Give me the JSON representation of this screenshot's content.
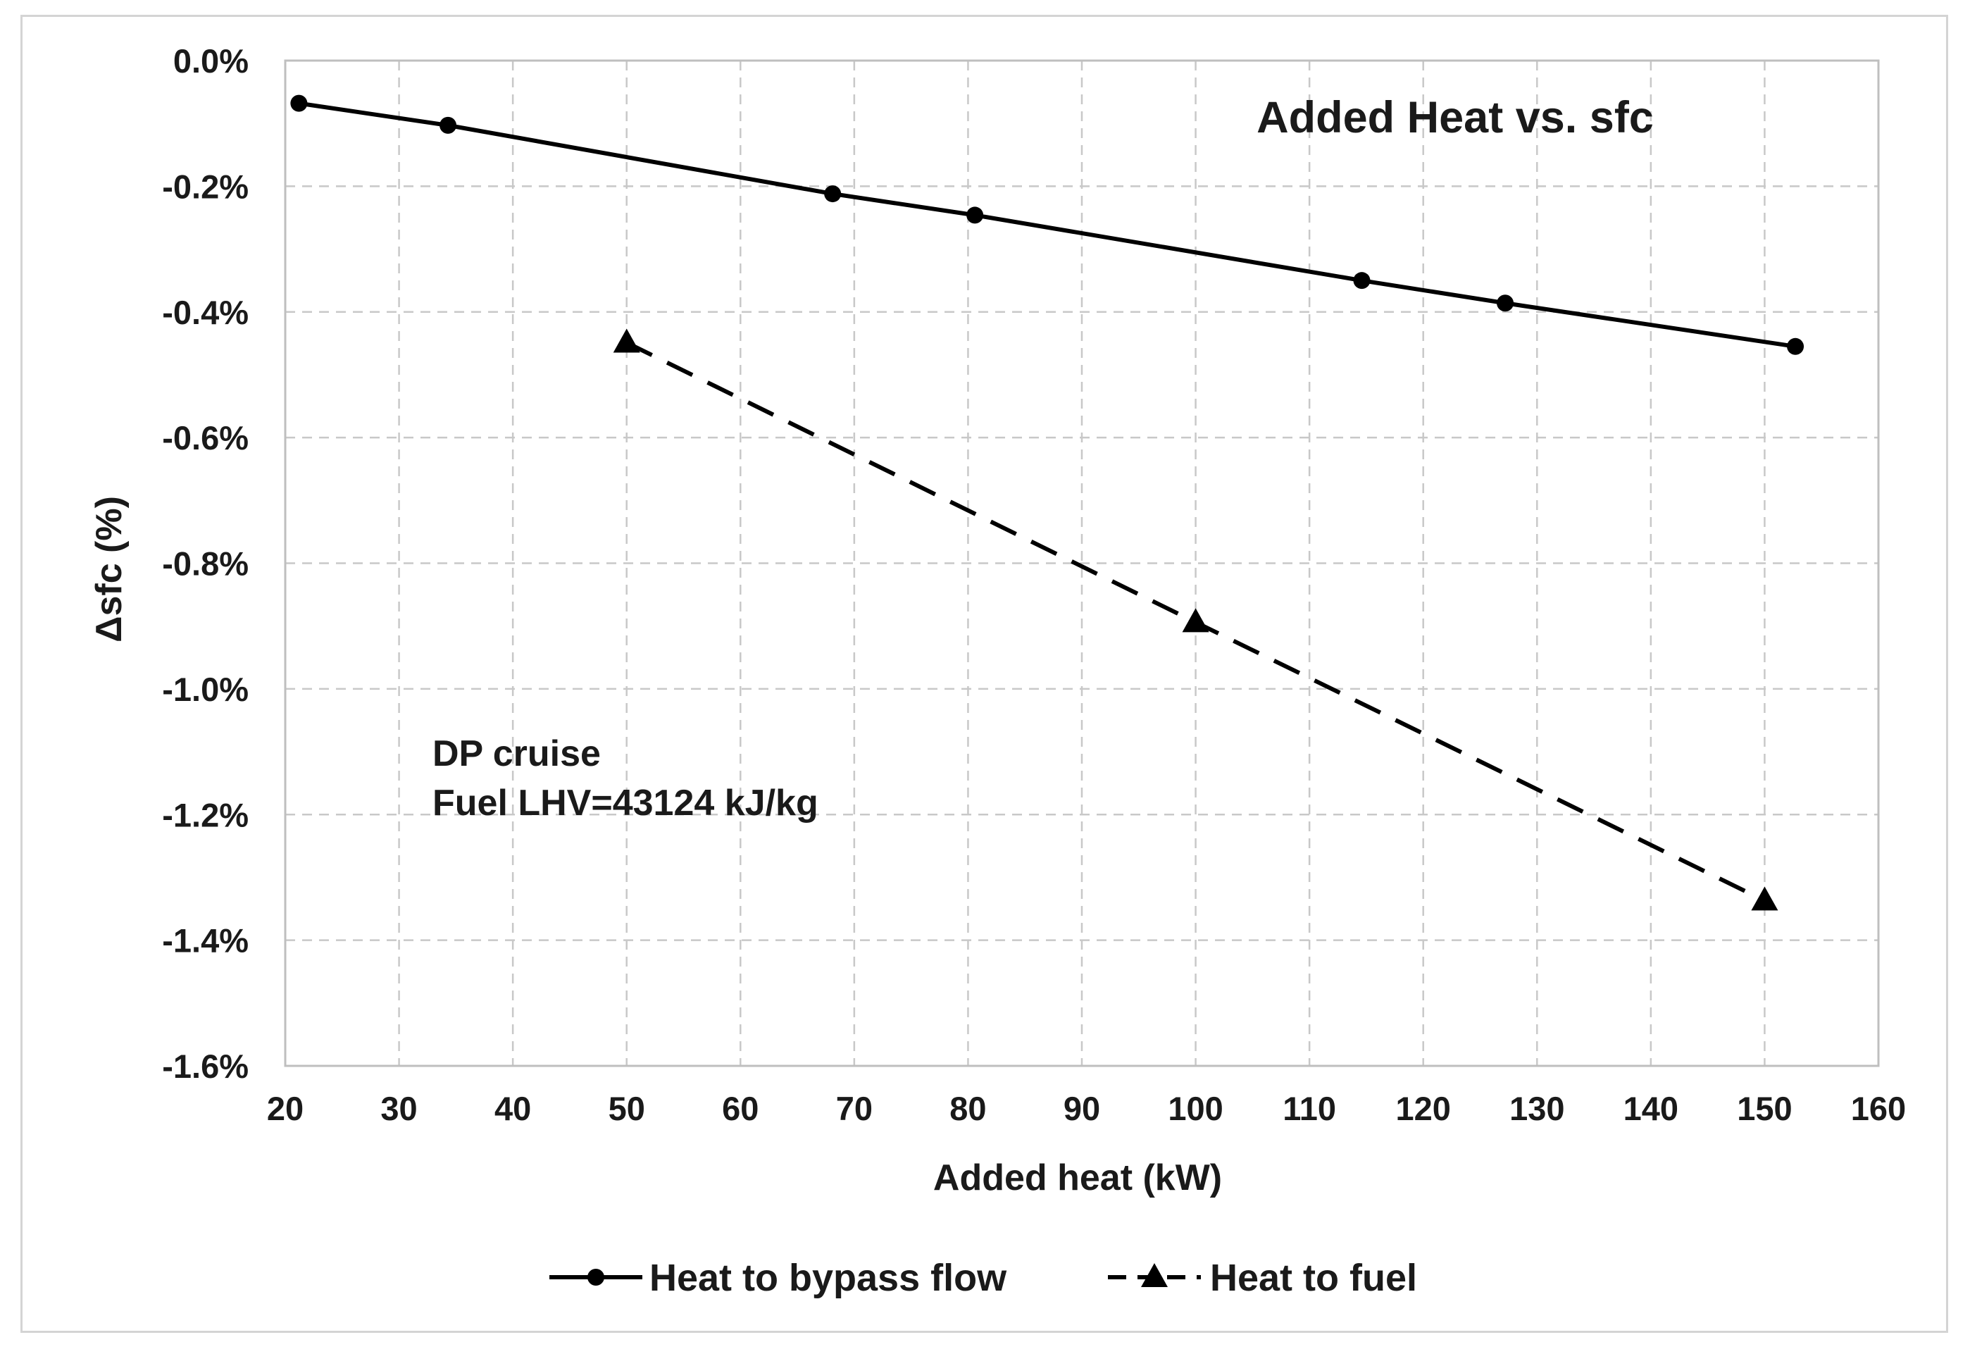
{
  "chart_data": {
    "type": "line",
    "title": "Added Heat  vs. sfc",
    "xlabel": "Added heat (kW)",
    "ylabel": "Δsfc (%)",
    "xlim": [
      20,
      160
    ],
    "ylim": [
      -1.6,
      0.0
    ],
    "x_ticks": [
      20,
      30,
      40,
      50,
      60,
      70,
      80,
      90,
      100,
      110,
      120,
      130,
      140,
      150,
      160
    ],
    "x_tick_labels": [
      "20",
      "30",
      "40",
      "50",
      "60",
      "70",
      "80",
      "90",
      "100",
      "110",
      "120",
      "130",
      "140",
      "150",
      "160"
    ],
    "y_ticks": [
      0.0,
      -0.2,
      -0.4,
      -0.6,
      -0.8,
      -1.0,
      -1.2,
      -1.4,
      -1.6
    ],
    "y_tick_labels": [
      "0.0%",
      "-0.2%",
      "-0.4%",
      "-0.6%",
      "-0.8%",
      "-1.0%",
      "-1.2%",
      "-1.4%",
      "-1.6%"
    ],
    "grid": true,
    "legend_position": "bottom",
    "annotations": [
      "DP cruise",
      "Fuel LHV=43124 kJ/kg"
    ],
    "series": [
      {
        "name": "Heat to bypass flow",
        "line_style": "solid",
        "marker": "circle",
        "color": "#000000",
        "x": [
          21.2,
          34.3,
          68.1,
          80.6,
          114.6,
          127.2,
          152.7
        ],
        "y": [
          -0.068,
          -0.103,
          -0.212,
          -0.246,
          -0.35,
          -0.386,
          -0.455
        ]
      },
      {
        "name": "Heat to fuel",
        "line_style": "dashed",
        "marker": "triangle",
        "color": "#000000",
        "x": [
          50,
          100,
          150
        ],
        "y": [
          -0.449,
          -0.894,
          -1.337
        ]
      }
    ]
  }
}
